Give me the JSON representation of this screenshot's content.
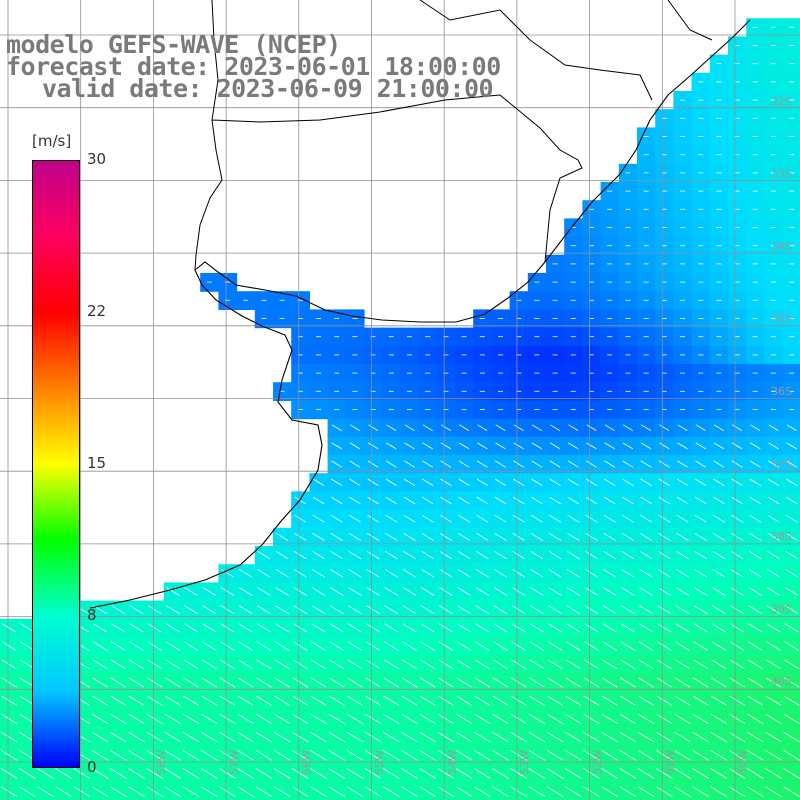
{
  "header": {
    "title": "modelo GEFS-WAVE (NCEP)",
    "forecast_date": "forecast date: 2023-06-01 18:00:00",
    "valid_date": "valid date: 2023-06-09 21:00:00"
  },
  "colorbar": {
    "unit": "[m/s]",
    "ticks": [
      "30",
      "22",
      "15",
      "8",
      "0"
    ],
    "colors": [
      "#0000ff",
      "#00c8ff",
      "#00ffd0",
      "#00ff00",
      "#ffff00",
      "#ff8000",
      "#ff0000",
      "#ff0060",
      "#c0008a"
    ]
  },
  "axes": {
    "latitude_labels": [
      "32S",
      "33S",
      "34S",
      "35S",
      "36S",
      "37S",
      "38S",
      "39S",
      "40S"
    ],
    "longitude_labels": [
      "58W",
      "57W",
      "56W",
      "55W",
      "54W",
      "53W",
      "52W",
      "51W",
      "50W"
    ]
  },
  "colors": {
    "land": "#ffffff",
    "grid": "#909090",
    "title": "#7a7a7a",
    "coast": "#000000",
    "arrows": "#ffffff"
  }
}
